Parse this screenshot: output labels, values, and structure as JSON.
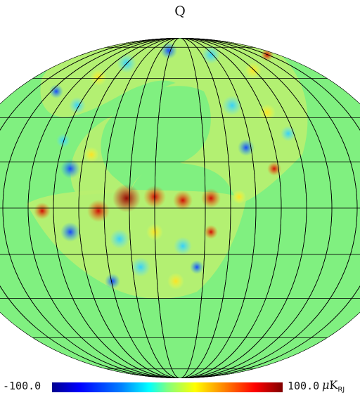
{
  "title": "Q",
  "colorbar": {
    "min_label": "-100.0",
    "max_label": "100.0",
    "unit_prefix": "μ",
    "unit_letter": "K",
    "unit_subscript": "RJ",
    "min": -100.0,
    "max": 100.0,
    "colormap": [
      "#00008f",
      "#0000ff",
      "#0080ff",
      "#00ffff",
      "#80ff80",
      "#ffff00",
      "#ff8000",
      "#ff0000",
      "#800000"
    ]
  },
  "map": {
    "projection": "mollweide",
    "background_value_color": "#80f080",
    "graticule": {
      "meridian_step_deg": 20,
      "parallel_step_deg": 20
    }
  }
}
